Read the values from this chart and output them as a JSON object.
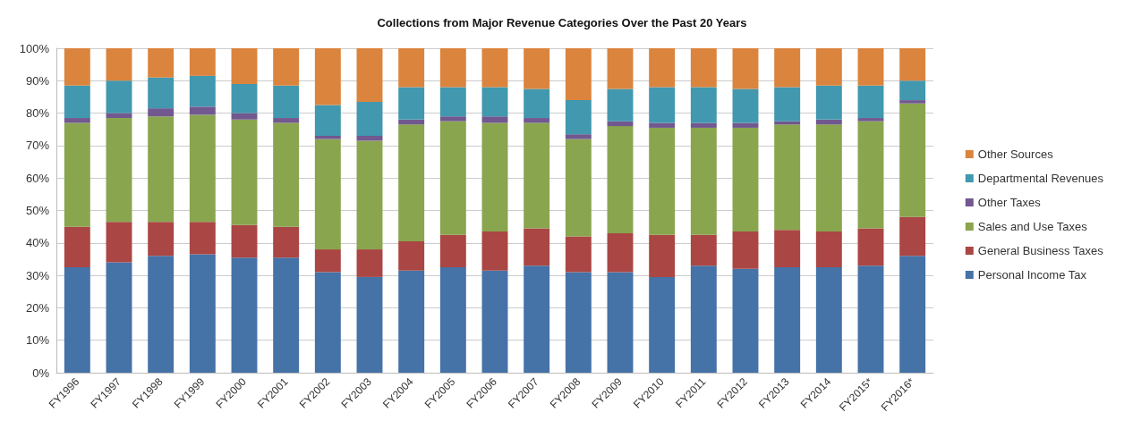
{
  "chart_data": {
    "type": "bar",
    "stacked": true,
    "title": "Collections from Major Revenue Categories Over the Past 20 Years",
    "categories": [
      "FY1996",
      "FY1997",
      "FY1998",
      "FY1999",
      "FY2000",
      "FY2001",
      "FY2002",
      "FY2003",
      "FY2004",
      "FY2005",
      "FY2006",
      "FY2007",
      "FY2008",
      "FY2009",
      "FY2010",
      "FY2011",
      "FY2012",
      "FY2013",
      "FY2014",
      "FY2015*",
      "FY2016*"
    ],
    "series": [
      {
        "name": "Personal Income Tax",
        "color": "#4572a7",
        "values": [
          32.5,
          34,
          36,
          36.5,
          35.5,
          35.5,
          31,
          29.5,
          31.5,
          32.5,
          31.5,
          33,
          31,
          31,
          29.5,
          33,
          32,
          32.5,
          32.5,
          33,
          36
        ]
      },
      {
        "name": "General Business Taxes",
        "color": "#aa4643",
        "values": [
          12.5,
          12.5,
          10.5,
          10,
          10,
          9.5,
          7,
          8.5,
          9,
          10,
          12,
          11.5,
          11,
          12,
          13,
          9.5,
          11.5,
          11.5,
          11,
          11.5,
          12
        ]
      },
      {
        "name": "Sales and Use Taxes",
        "color": "#89a54e",
        "values": [
          32,
          32,
          32.5,
          33,
          32.5,
          32,
          34,
          33.5,
          36,
          35,
          33.5,
          32.5,
          30,
          33,
          33,
          33,
          32,
          32.5,
          33,
          33,
          35
        ]
      },
      {
        "name": "Other Taxes",
        "color": "#71588f",
        "values": [
          1.5,
          1.5,
          2.5,
          2.5,
          2,
          1.5,
          1,
          1.5,
          1.5,
          1.5,
          2,
          1.5,
          1.5,
          1.5,
          1.5,
          1.5,
          1.5,
          1,
          1.5,
          1,
          1
        ]
      },
      {
        "name": "Departmental Revenues",
        "color": "#4198af",
        "values": [
          10,
          10,
          9.5,
          9.5,
          9,
          10,
          9.5,
          10.5,
          10,
          9,
          9,
          9,
          10.5,
          10,
          11,
          11,
          10.5,
          10.5,
          10.5,
          10,
          6
        ]
      },
      {
        "name": "Other Sources",
        "color": "#db843d",
        "values": [
          11.5,
          10,
          9,
          8.5,
          11,
          11.5,
          17.5,
          16.5,
          12,
          12,
          12,
          12.5,
          16,
          12.5,
          12,
          12,
          12.5,
          12,
          11.5,
          11.5,
          10
        ]
      }
    ],
    "ylim": [
      0,
      100
    ],
    "yticks": [
      {
        "value": 0,
        "label": "0%"
      },
      {
        "value": 10,
        "label": "10%"
      },
      {
        "value": 20,
        "label": "20%"
      },
      {
        "value": 30,
        "label": "30%"
      },
      {
        "value": 40,
        "label": "40%"
      },
      {
        "value": 50,
        "label": "50%"
      },
      {
        "value": 60,
        "label": "60%"
      },
      {
        "value": 70,
        "label": "70%"
      },
      {
        "value": 80,
        "label": "80%"
      },
      {
        "value": 90,
        "label": "90%"
      },
      {
        "value": 100,
        "label": "100%"
      }
    ],
    "grid": "y",
    "legend": "right"
  }
}
